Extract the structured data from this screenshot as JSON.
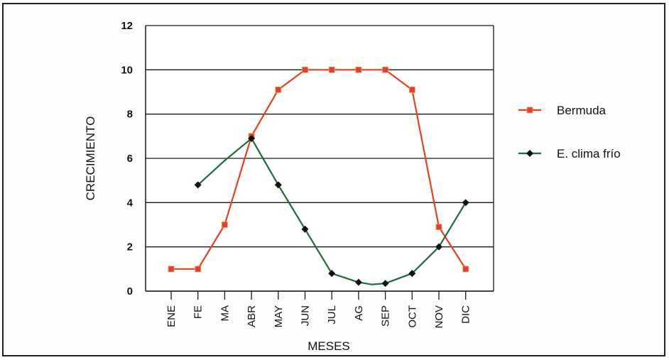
{
  "chart_data": {
    "type": "line",
    "xlabel": "MESES",
    "ylabel": "CRECIMIENTO",
    "ylim": [
      0,
      12
    ],
    "yticks": [
      0,
      2,
      4,
      6,
      8,
      10,
      12
    ],
    "grid": "horizontal",
    "legend_position": "right",
    "categories": [
      "ENE",
      "FE",
      "MA",
      "ABR",
      "MAY",
      "JUN",
      "JUL",
      "AG",
      "SEP",
      "OCT",
      "NOV",
      "DIC"
    ],
    "series": [
      {
        "name": "Bermuda",
        "color": "#e8401c",
        "marker_color": "#e23a4a",
        "marker": "square",
        "points": [
          [
            0,
            1.0
          ],
          [
            1,
            1.0
          ],
          [
            2,
            3.0
          ],
          [
            3,
            7.0
          ],
          [
            4,
            9.1
          ],
          [
            5,
            10.0
          ],
          [
            6,
            10.0
          ],
          [
            7,
            10.0
          ],
          [
            8,
            10.0
          ],
          [
            9,
            9.1
          ],
          [
            10,
            2.9
          ],
          [
            11,
            1.0
          ]
        ]
      },
      {
        "name": "E. clima frío",
        "color": "#1f6b3a",
        "marker_color": "#111111",
        "marker": "diamond",
        "points": [
          [
            1,
            4.8
          ],
          [
            3,
            6.9
          ],
          [
            4,
            4.8
          ],
          [
            5,
            2.8
          ],
          [
            6,
            0.8
          ],
          [
            7,
            0.4
          ],
          [
            8,
            0.35
          ],
          [
            9,
            0.8
          ],
          [
            10,
            2.0
          ],
          [
            11,
            4.0
          ]
        ],
        "line_points": [
          [
            1,
            4.8
          ],
          [
            2,
            5.9
          ],
          [
            3,
            6.9
          ],
          [
            4,
            4.8
          ],
          [
            5,
            2.8
          ],
          [
            6,
            0.8
          ],
          [
            7,
            0.4
          ],
          [
            7.5,
            0.3
          ],
          [
            8,
            0.35
          ],
          [
            9,
            0.8
          ],
          [
            10,
            2.0
          ],
          [
            11,
            4.0
          ]
        ]
      }
    ]
  }
}
